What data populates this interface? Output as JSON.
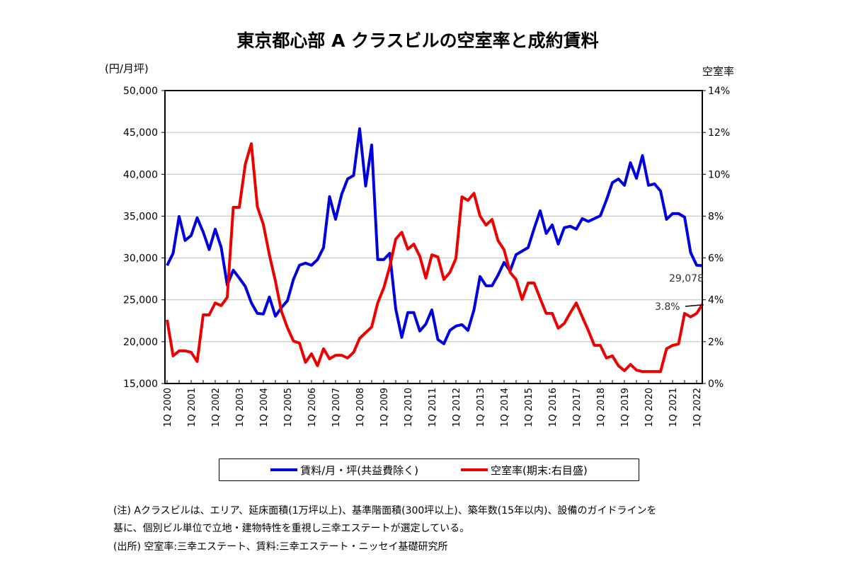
{
  "chart_data": {
    "type": "line",
    "title": "東京都心部 A クラスビルの空室率と成約賃料",
    "ylabel_left": "(円/月坪)",
    "ylabel_right": "空室率",
    "ylim_left": [
      15000,
      50000
    ],
    "ylim_right": [
      0,
      14
    ],
    "yticks_left": [
      "50,000",
      "45,000",
      "40,000",
      "35,000",
      "30,000",
      "25,000",
      "20,000",
      "15,000"
    ],
    "yticks_right": [
      "14%",
      "12%",
      "10%",
      "8%",
      "6%",
      "4%",
      "2%",
      "0%"
    ],
    "x_start": "1Q 2000",
    "x_end": "2Q 2022",
    "xtick_labels": [
      "1Q 2000",
      "1Q 2001",
      "1Q 2002",
      "1Q 2003",
      "1Q 2004",
      "1Q 2005",
      "1Q 2006",
      "1Q 2007",
      "1Q 2008",
      "1Q 2009",
      "1Q 2010",
      "1Q 2011",
      "1Q 2012",
      "1Q 2013",
      "1Q 2014",
      "1Q 2015",
      "1Q 2016",
      "1Q 2017",
      "1Q 2018",
      "1Q 2019",
      "1Q 2020",
      "1Q 2021",
      "1Q 2022"
    ],
    "grid": true,
    "legend_position": "bottom",
    "series": [
      {
        "name": "賃料/月・坪(共益費除く)",
        "axis": "left",
        "color": "#0000dd",
        "values": [
          29100,
          30560,
          34960,
          32090,
          32680,
          34800,
          33100,
          31000,
          33440,
          31240,
          26760,
          28540,
          27600,
          26600,
          24650,
          23380,
          23300,
          25330,
          23050,
          24060,
          24900,
          27440,
          29130,
          29380,
          29130,
          29800,
          31240,
          37330,
          34620,
          37580,
          39440,
          39860,
          45440,
          38600,
          43500,
          29800,
          29800,
          30560,
          23890,
          20510,
          23470,
          23470,
          21270,
          22100,
          23800,
          20250,
          19750,
          21350,
          21860,
          22030,
          21350,
          23800,
          27780,
          26680,
          26680,
          27950,
          29470,
          28450,
          30400,
          30820,
          31240,
          33520,
          35640,
          32930,
          33950,
          31660,
          33610,
          33780,
          33440,
          34700,
          34370,
          34700,
          35040,
          36900,
          39000,
          39440,
          38680,
          41380,
          39520,
          42230,
          38680,
          38850,
          38000,
          34620,
          35300,
          35300,
          34880,
          30650,
          29130,
          29078
        ]
      },
      {
        "name": "空室率(期末:右目盛)",
        "axis": "right",
        "color": "#ee0000",
        "values": [
          3.04,
          1.32,
          1.56,
          1.56,
          1.49,
          1.05,
          3.28,
          3.28,
          3.85,
          3.72,
          4.12,
          8.42,
          8.42,
          10.48,
          11.46,
          8.45,
          7.6,
          6.15,
          4.9,
          3.45,
          2.67,
          2.03,
          1.93,
          1.01,
          1.42,
          0.85,
          1.66,
          1.18,
          1.35,
          1.35,
          1.22,
          1.49,
          2.16,
          2.43,
          2.7,
          3.85,
          4.56,
          5.58,
          6.9,
          7.23,
          6.42,
          6.66,
          6.08,
          5.04,
          6.15,
          6.05,
          4.97,
          5.31,
          5.98,
          8.92,
          8.75,
          9.09,
          8.01,
          7.57,
          7.84,
          6.83,
          6.39,
          5.31,
          4.97,
          4.02,
          4.8,
          4.8,
          4.06,
          3.35,
          3.35,
          2.64,
          2.87,
          3.38,
          3.85,
          3.18,
          2.54,
          1.82,
          1.82,
          1.22,
          1.32,
          0.85,
          0.61,
          0.91,
          0.64,
          0.57,
          0.57,
          0.57,
          0.57,
          1.66,
          1.82,
          1.89,
          3.35,
          3.18,
          3.35,
          3.8
        ]
      }
    ],
    "annotations": [
      "29,078",
      "3.8%"
    ]
  },
  "notes": [
    "(注) Aクラスビルは、エリア、延床面積(1万坪以上)、基準階面積(300坪以上)、築年数(15年以内)、設備のガイドラインを",
    "基に、個別ビル単位で立地・建物特性を重視し三幸エステートが選定している。",
    "(出所) 空室率:三幸エステート、賃料:三幸エステート・ニッセイ基礎研究所"
  ]
}
